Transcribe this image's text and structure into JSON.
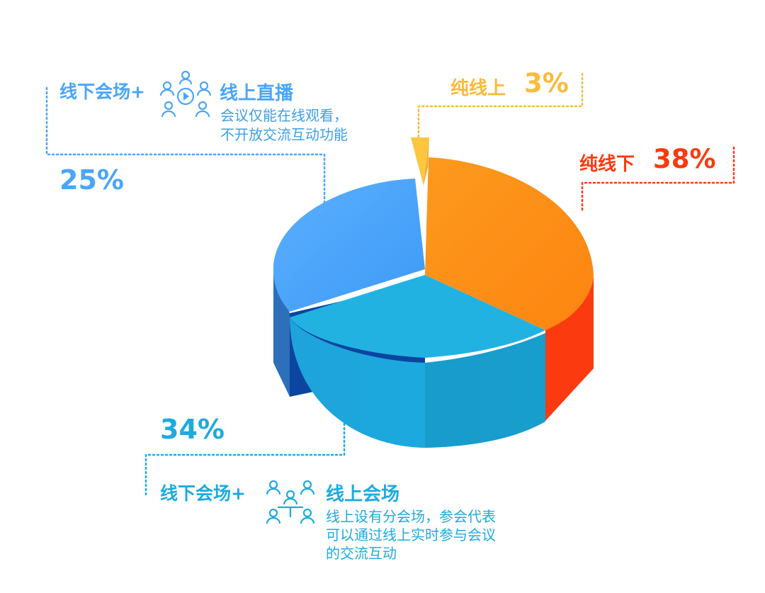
{
  "chart_data": {
    "type": "pie",
    "style": "3d-exploded",
    "slices": [
      {
        "label": "纯线上",
        "value": 3,
        "value_text": "3%",
        "color": "#fcc63f"
      },
      {
        "label": "纯线下",
        "value": 38,
        "value_text": "38%",
        "color": "#fd8a14"
      },
      {
        "label": "线下会场+线上会场",
        "value": 34,
        "value_text": "34%",
        "color": "#1eaadf"
      },
      {
        "label": "线下会场+线上直播",
        "value": 25,
        "value_text": "25%",
        "color": "#4aa5fb"
      }
    ]
  },
  "labels": {
    "live": {
      "prefix": "线下会场+",
      "title": "线上直播",
      "desc_line1": "会议仅能在线观看，",
      "desc_line2": "不开放交流互动功能",
      "pct": "25%",
      "icon": "audience-play-icon"
    },
    "online": {
      "title": "纯线上",
      "pct": "3%"
    },
    "offline": {
      "title": "纯线下",
      "pct": "38%"
    },
    "venue": {
      "prefix": "线下会场+",
      "title": "线上会场",
      "desc_line1": "线上设有分会场，参会代表",
      "desc_line2": "可以通过线上实时参与会议",
      "desc_line3": "的交流互动",
      "pct": "34%",
      "icon": "meeting-group-icon"
    }
  },
  "colors": {
    "blue": "#4aa5fb",
    "cyan": "#1eaadf",
    "orange": "#fd8a14",
    "red": "#fb3a10",
    "yellow": "#fbbb3a"
  }
}
